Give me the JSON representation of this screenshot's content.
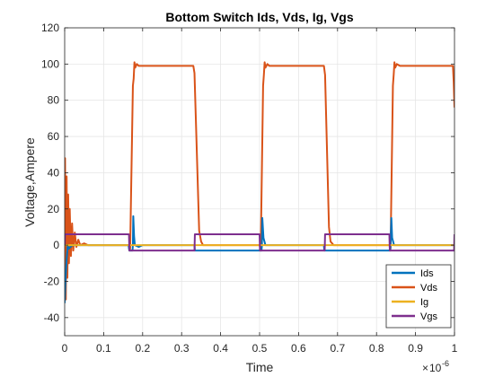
{
  "chart_data": {
    "type": "line",
    "title": "Bottom Switch Ids, Vds, Ig, Vgs",
    "xlabel": "Time",
    "ylabel": "Voltage,Ampere",
    "x_exponent_label": "10",
    "x_exponent_power": "-6",
    "x_prefix": "×",
    "xlim": [
      0,
      1
    ],
    "ylim": [
      -50,
      120
    ],
    "xticks": [
      "0",
      "0.1",
      "0.2",
      "0.3",
      "0.4",
      "0.5",
      "0.6",
      "0.7",
      "0.8",
      "0.9",
      "1"
    ],
    "yticks": [
      "120",
      "100",
      "80",
      "60",
      "40",
      "20",
      "0",
      "-20",
      "-40"
    ],
    "grid": true,
    "legend_position": "bottom-right",
    "series": [
      {
        "name": "Ids",
        "color": "#0072BD",
        "points": [
          [
            0,
            -32
          ],
          [
            0.002,
            -20
          ],
          [
            0.005,
            -8
          ],
          [
            0.008,
            0
          ],
          [
            0.01,
            -2
          ],
          [
            0.02,
            0
          ],
          [
            0.164,
            0
          ],
          [
            0.165,
            -2
          ],
          [
            0.166,
            -3
          ],
          [
            0.174,
            -3
          ],
          [
            0.175,
            0
          ],
          [
            0.176,
            16
          ],
          [
            0.178,
            5
          ],
          [
            0.18,
            0
          ],
          [
            0.19,
            -1
          ],
          [
            0.2,
            0
          ],
          [
            0.333,
            0
          ],
          [
            0.334,
            -3
          ],
          [
            0.34,
            -3
          ],
          [
            0.5,
            -3
          ],
          [
            0.505,
            -3
          ],
          [
            0.506,
            0
          ],
          [
            0.507,
            15
          ],
          [
            0.51,
            4
          ],
          [
            0.515,
            0
          ],
          [
            0.53,
            0
          ],
          [
            0.665,
            0
          ],
          [
            0.666,
            -3
          ],
          [
            0.67,
            -3
          ],
          [
            0.834,
            -3
          ],
          [
            0.835,
            -3
          ],
          [
            0.836,
            0
          ],
          [
            0.838,
            15
          ],
          [
            0.84,
            4
          ],
          [
            0.845,
            0
          ],
          [
            0.86,
            0
          ],
          [
            0.998,
            0
          ],
          [
            1,
            0
          ]
        ]
      },
      {
        "name": "Vds",
        "color": "#D95319",
        "points": [
          [
            0,
            0
          ],
          [
            0.001,
            48
          ],
          [
            0.003,
            -30
          ],
          [
            0.005,
            38
          ],
          [
            0.007,
            -18
          ],
          [
            0.009,
            28
          ],
          [
            0.011,
            -10
          ],
          [
            0.013,
            20
          ],
          [
            0.016,
            -6
          ],
          [
            0.019,
            12
          ],
          [
            0.022,
            -3
          ],
          [
            0.026,
            7
          ],
          [
            0.03,
            -1
          ],
          [
            0.035,
            3
          ],
          [
            0.04,
            0
          ],
          [
            0.05,
            1
          ],
          [
            0.06,
            0
          ],
          [
            0.165,
            0
          ],
          [
            0.168,
            -2
          ],
          [
            0.175,
            88
          ],
          [
            0.177,
            92
          ],
          [
            0.179,
            101
          ],
          [
            0.181,
            98
          ],
          [
            0.185,
            100
          ],
          [
            0.19,
            99
          ],
          [
            0.2,
            99
          ],
          [
            0.33,
            99
          ],
          [
            0.333,
            95
          ],
          [
            0.345,
            8
          ],
          [
            0.35,
            2
          ],
          [
            0.355,
            0
          ],
          [
            0.5,
            0
          ],
          [
            0.503,
            -2
          ],
          [
            0.509,
            88
          ],
          [
            0.511,
            94
          ],
          [
            0.513,
            101
          ],
          [
            0.515,
            98
          ],
          [
            0.52,
            100
          ],
          [
            0.525,
            99
          ],
          [
            0.665,
            99
          ],
          [
            0.668,
            94
          ],
          [
            0.678,
            10
          ],
          [
            0.682,
            2
          ],
          [
            0.69,
            0
          ],
          [
            0.834,
            0
          ],
          [
            0.836,
            -2
          ],
          [
            0.842,
            88
          ],
          [
            0.844,
            94
          ],
          [
            0.846,
            101
          ],
          [
            0.848,
            98
          ],
          [
            0.852,
            100
          ],
          [
            0.86,
            99
          ],
          [
            0.996,
            99
          ],
          [
            0.998,
            90
          ],
          [
            1,
            76
          ]
        ]
      },
      {
        "name": "Ig",
        "color": "#EDB120",
        "points": [
          [
            0,
            0
          ],
          [
            0.1,
            0
          ],
          [
            0.2,
            0
          ],
          [
            0.3,
            0
          ],
          [
            0.4,
            0
          ],
          [
            0.5,
            0
          ],
          [
            0.6,
            0
          ],
          [
            0.7,
            0
          ],
          [
            0.8,
            0
          ],
          [
            0.9,
            0
          ],
          [
            1,
            0
          ]
        ]
      },
      {
        "name": "Vgs",
        "color": "#7E2F8E",
        "points": [
          [
            0,
            0
          ],
          [
            0.001,
            6
          ],
          [
            0.165,
            6
          ],
          [
            0.166,
            -3
          ],
          [
            0.333,
            -3
          ],
          [
            0.334,
            6
          ],
          [
            0.5,
            6
          ],
          [
            0.501,
            -3
          ],
          [
            0.667,
            -3
          ],
          [
            0.668,
            6
          ],
          [
            0.833,
            6
          ],
          [
            0.834,
            -3
          ],
          [
            0.999,
            -3
          ],
          [
            1,
            6
          ]
        ]
      }
    ]
  }
}
